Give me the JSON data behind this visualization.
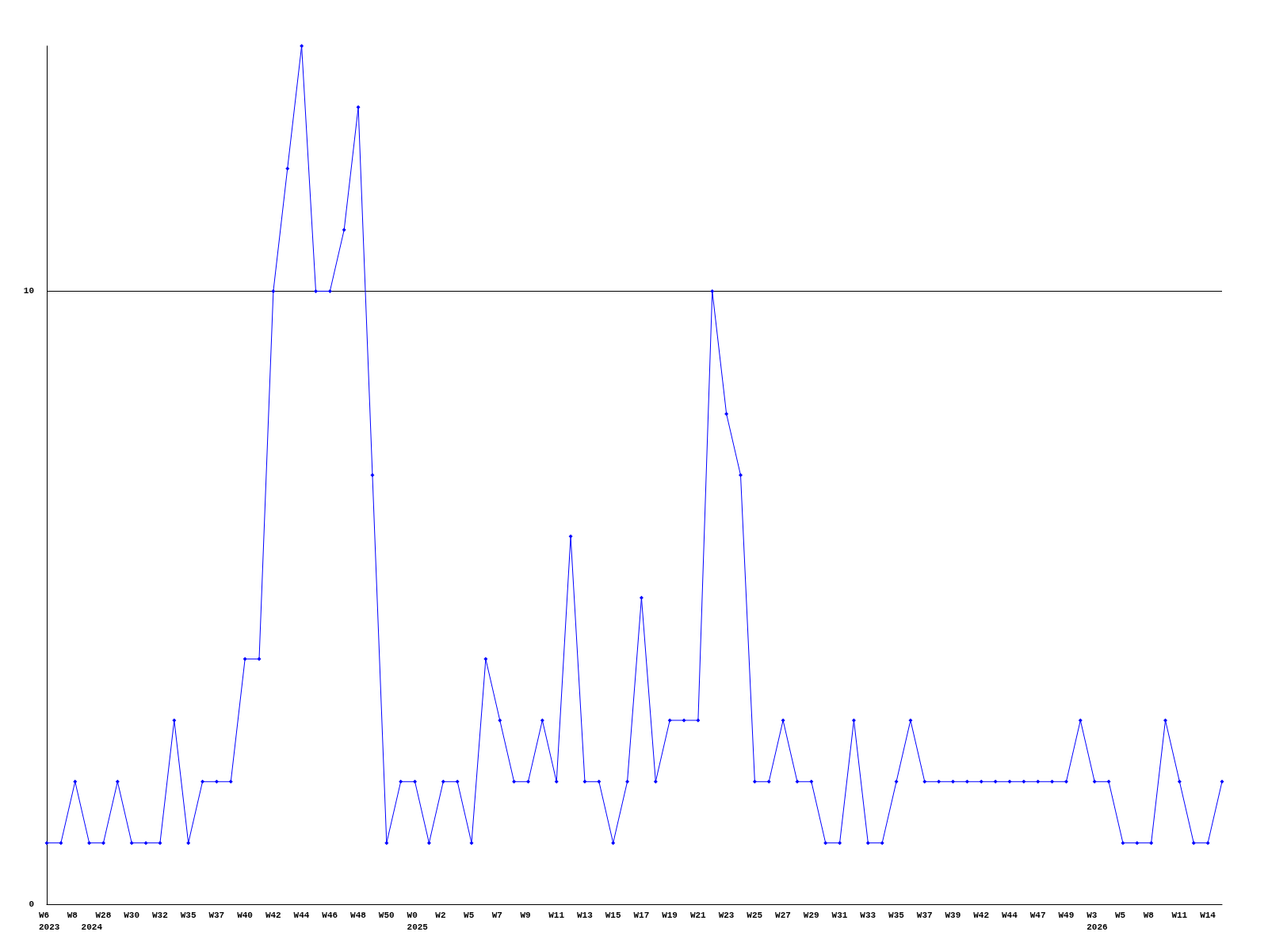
{
  "chart_data": {
    "type": "line",
    "categories": [
      "W6\n2023",
      null,
      "W8",
      "\n2024",
      "W28",
      null,
      "W30",
      null,
      "W32",
      null,
      "W35",
      null,
      "W37",
      null,
      "W40",
      null,
      "W42",
      null,
      "W44",
      null,
      "W46",
      null,
      "W48",
      null,
      "W50",
      null,
      "W0\n2025",
      null,
      "W2",
      null,
      "W5",
      null,
      "W7",
      null,
      "W9",
      null,
      "W11",
      null,
      "W13",
      null,
      "W15",
      null,
      "W17",
      null,
      "W19",
      null,
      "W21",
      null,
      "W23",
      null,
      "W25",
      null,
      "W27",
      null,
      "W29",
      null,
      "W31",
      null,
      "W33",
      null,
      "W35",
      null,
      "W37",
      null,
      "W39",
      null,
      "W42",
      null,
      "W44",
      null,
      "W47",
      null,
      "W49",
      null,
      "W3\n2026",
      null,
      "W5",
      null,
      "W8",
      null,
      "W11",
      null,
      "W14",
      null
    ],
    "series": [
      {
        "color": "#0000ff",
        "values": [
          1,
          1,
          2,
          1,
          1,
          2,
          1,
          1,
          1,
          3,
          1,
          2,
          2,
          2,
          4,
          4,
          10,
          12,
          14,
          10,
          10,
          11,
          13,
          7,
          1,
          2,
          2,
          1,
          2,
          2,
          1,
          4,
          3,
          2,
          2,
          3,
          2,
          6,
          2,
          2,
          1,
          2,
          5,
          2,
          3,
          3,
          3,
          10,
          8,
          7,
          2,
          2,
          3,
          2,
          2,
          1,
          1,
          3,
          1,
          1,
          2,
          3,
          2,
          2,
          2,
          2,
          2,
          2,
          2,
          2,
          2,
          2,
          2,
          3,
          2,
          2,
          1,
          1,
          1,
          3,
          2,
          1,
          1,
          2
        ]
      }
    ],
    "ylim": [
      0,
      14
    ],
    "yticks": [
      0,
      10
    ],
    "grid": "y",
    "marker": "diamond",
    "line_style": "solid"
  }
}
